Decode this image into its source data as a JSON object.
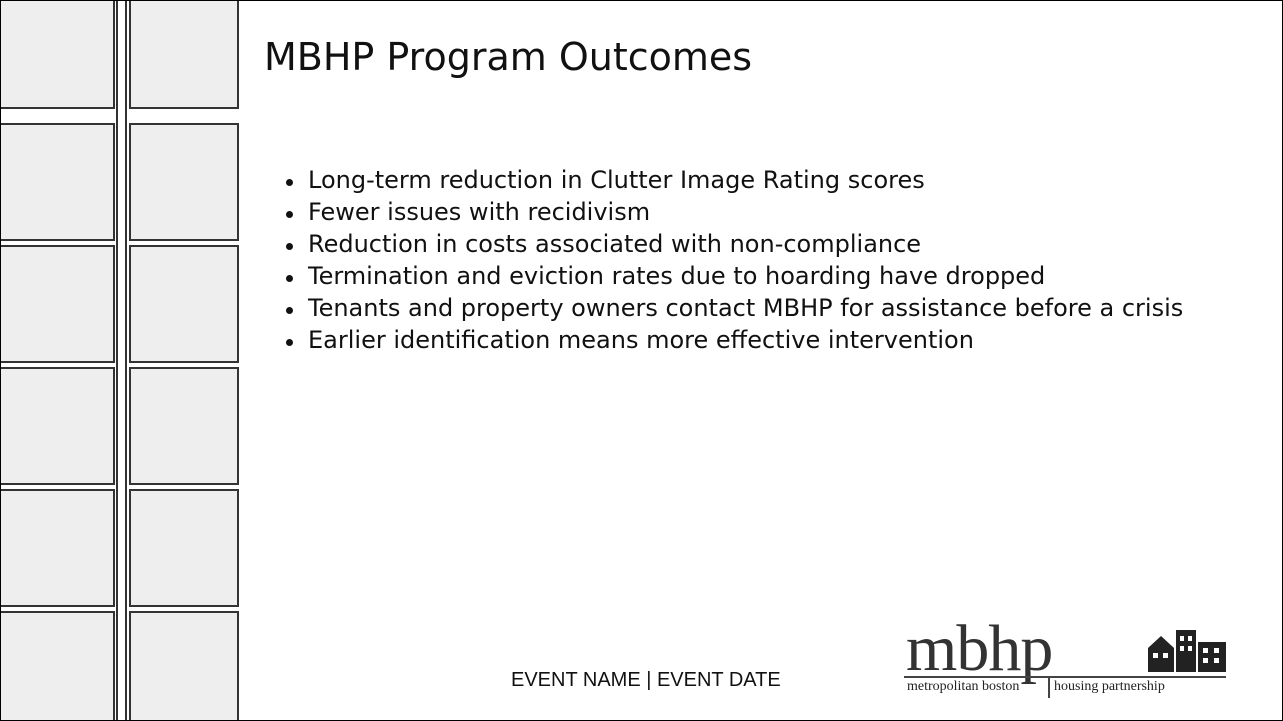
{
  "title": "MBHP Program Outcomes",
  "bullets": [
    "Long-term reduction in Clutter Image Rating scores",
    "Fewer issues with recidivism",
    "Reduction in costs associated with non-compliance",
    "Termination and eviction rates due to hoarding have dropped",
    "Tenants and property owners contact MBHP for assistance before a crisis",
    "Earlier identification means more effective intervention"
  ],
  "footer": "EVENT NAME | EVENT DATE",
  "logo": {
    "word": "mbhp",
    "left": "metropolitan boston",
    "right": "housing partnership"
  }
}
